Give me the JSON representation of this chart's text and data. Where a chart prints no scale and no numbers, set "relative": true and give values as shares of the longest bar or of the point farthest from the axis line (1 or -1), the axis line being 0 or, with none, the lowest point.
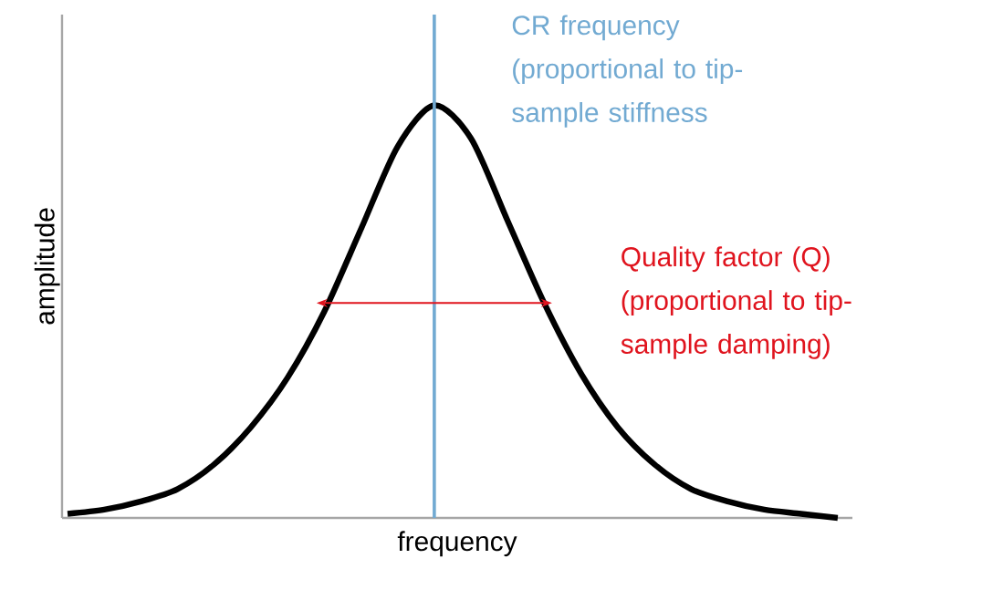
{
  "chart_data": {
    "type": "line",
    "relative": true,
    "xlabel": "frequency",
    "ylabel": "amplitude",
    "categories": [
      null,
      null,
      null,
      null,
      null,
      null,
      null,
      null,
      null,
      null,
      null,
      null,
      null,
      null,
      null,
      null,
      null,
      null,
      null,
      null,
      null,
      null
    ],
    "series": [
      {
        "color": "#000000",
        "values": [
          0.01,
          0.02,
          0.04,
          0.07,
          0.13,
          0.22,
          0.34,
          0.5,
          0.7,
          0.9,
          1.0,
          0.92,
          0.72,
          0.52,
          0.35,
          0.22,
          0.13,
          0.07,
          0.04,
          0.02,
          0.01,
          0.0
        ]
      }
    ],
    "annotations": [
      "CR frequency (proportional to tip-sample stiffness",
      "Quality factor (Q) (proportional to tip-sample damping)"
    ]
  }
}
